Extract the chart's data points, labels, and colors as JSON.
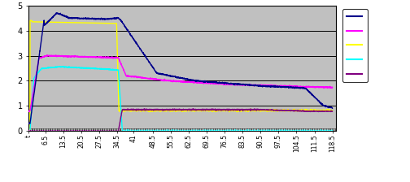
{
  "xlim": [
    0,
    120
  ],
  "ylim": [
    0,
    5
  ],
  "yticks": [
    0,
    1,
    2,
    3,
    4,
    5
  ],
  "xtick_labels": [
    "t",
    "6.5",
    "13.5",
    "20.5",
    "27.5",
    "34.5",
    "41",
    "48.5",
    "55.5",
    "62.5",
    "69.5",
    "76.5",
    "83.5",
    "90.5",
    "97.5",
    "104.5",
    "111.5",
    "118.5"
  ],
  "xtick_positions": [
    0,
    6.5,
    13.5,
    20.5,
    27.5,
    34.5,
    41,
    48.5,
    55.5,
    62.5,
    69.5,
    76.5,
    83.5,
    90.5,
    97.5,
    104.5,
    111.5,
    118.5
  ],
  "bg_color": "#c0c0c0",
  "line_colors": [
    "#00008b",
    "#ff00ff",
    "#ffff00",
    "#00ffff",
    "#800080"
  ],
  "grid_color": "#000000",
  "grid_linewidth": 0.7,
  "fig_width": 5.04,
  "fig_height": 2.24,
  "dpi": 100
}
